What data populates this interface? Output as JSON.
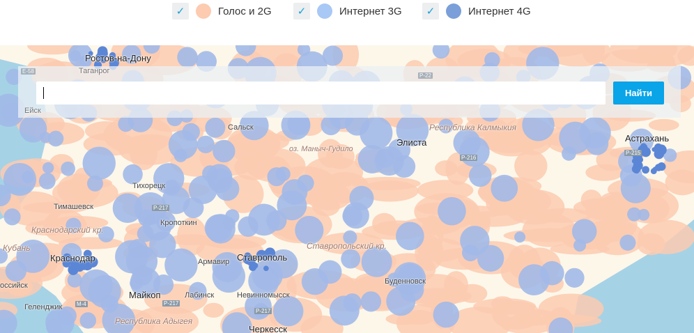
{
  "legend": [
    {
      "label": "Голос и 2G",
      "checked": true,
      "color": "#fccbb0"
    },
    {
      "label": "Интернет 3G",
      "checked": true,
      "color": "#a8c8f5"
    },
    {
      "label": "Интернет 4G",
      "checked": true,
      "color": "#7b9fd8"
    }
  ],
  "search": {
    "value": "",
    "button_label": "Найти"
  },
  "map": {
    "colors": {
      "land": "#fdf7ea",
      "water": "#a6d2e6",
      "voice_2g": "#fccbb0",
      "net_3g": "#a2b9e8",
      "net_4g": "#5b86d6"
    },
    "cities": [
      {
        "name": "Ростов-на-Дону",
        "major": true
      },
      {
        "name": "Таганрог"
      },
      {
        "name": "Ейск"
      },
      {
        "name": "Сальск"
      },
      {
        "name": "Элиста",
        "major": true
      },
      {
        "name": "Астрахань",
        "major": true
      },
      {
        "name": "Тихорецк"
      },
      {
        "name": "Тимашевск"
      },
      {
        "name": "Кропоткин"
      },
      {
        "name": "Краснодар",
        "major": true
      },
      {
        "name": "Армавир"
      },
      {
        "name": "Ставрополь",
        "major": true
      },
      {
        "name": "Буденновск"
      },
      {
        "name": "Майкоп",
        "major": true
      },
      {
        "name": "Лабинск"
      },
      {
        "name": "Невинномысск"
      },
      {
        "name": "Геленджик"
      },
      {
        "name": "Черкесск",
        "major": true
      },
      {
        "name": "оссийск"
      },
      {
        "name": "Кубань"
      }
    ],
    "regions": [
      "Республика Калмыкия",
      "Краснодарский кр.",
      "Ставропольский кр.",
      "Республика Адыгея",
      "оз. Маныч-Гудило"
    ],
    "roads": [
      "E-58",
      "P-22",
      "P-216",
      "P-217",
      "M-4",
      "P-215",
      "P-217",
      "M-4",
      "P-217"
    ]
  }
}
